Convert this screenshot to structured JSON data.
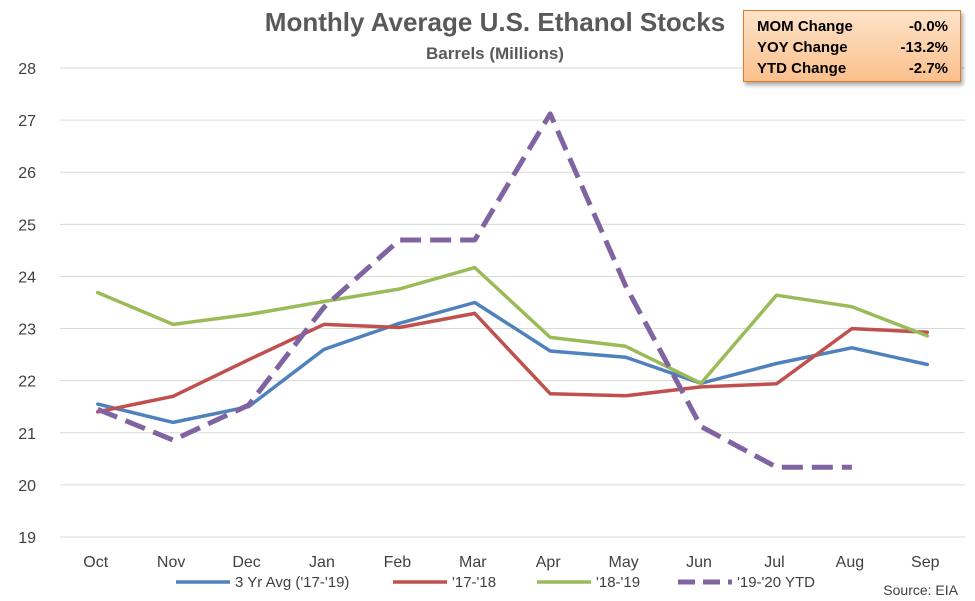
{
  "chart_data": {
    "type": "line",
    "title": "Monthly Average U.S. Ethanol Stocks",
    "subtitle": "Barrels (Millions)",
    "categories": [
      "Oct",
      "Nov",
      "Dec",
      "Jan",
      "Feb",
      "Mar",
      "Apr",
      "May",
      "Jun",
      "Jul",
      "Aug",
      "Sep"
    ],
    "ylim": [
      19,
      28
    ],
    "yticks": [
      "19",
      "20",
      "21",
      "22",
      "23",
      "24",
      "25",
      "26",
      "27",
      "28"
    ],
    "grid": true,
    "legend_position": "bottom",
    "series": [
      {
        "name": "3 Yr Avg ('17-'19)",
        "color": "#4f81bd",
        "dashed": false,
        "values": [
          21.55,
          21.2,
          21.5,
          22.6,
          23.1,
          23.5,
          22.57,
          22.45,
          21.95,
          22.33,
          22.63,
          22.31
        ]
      },
      {
        "name": "'17-'18",
        "color": "#c0504d",
        "dashed": false,
        "values": [
          21.4,
          21.7,
          22.4,
          23.08,
          23.02,
          23.29,
          21.75,
          21.71,
          21.88,
          21.94,
          23.0,
          22.93
        ]
      },
      {
        "name": "'18-'19",
        "color": "#9bbb59",
        "dashed": false,
        "values": [
          23.69,
          23.08,
          23.27,
          23.52,
          23.76,
          24.17,
          22.83,
          22.66,
          21.95,
          23.64,
          23.42,
          22.86
        ]
      },
      {
        "name": "'19-'20 YTD",
        "color": "#8064a2",
        "dashed": true,
        "values": [
          21.45,
          20.86,
          21.53,
          23.41,
          24.7,
          24.7,
          27.12,
          23.82,
          21.12,
          20.34,
          20.34,
          null
        ]
      }
    ],
    "annotation": "Source: EIA"
  },
  "stats_box": {
    "rows": [
      {
        "label": "MOM Change",
        "value": "-0.0%"
      },
      {
        "label": "YOY Change",
        "value": "-13.2%"
      },
      {
        "label": "YTD Change",
        "value": "-2.7%"
      }
    ]
  }
}
